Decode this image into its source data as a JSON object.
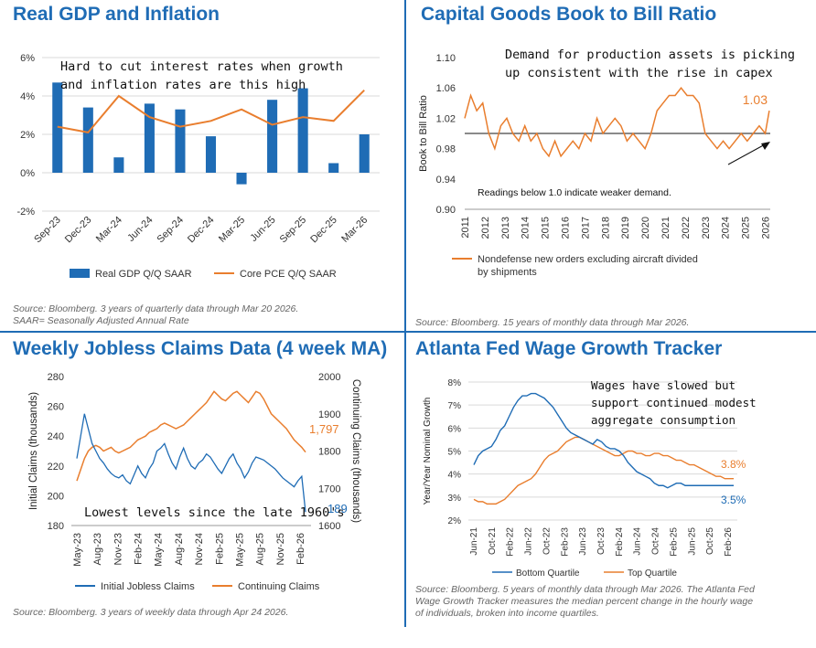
{
  "panels": [
    {
      "title": "Real GDP and Inflation",
      "source": [
        "Source: Bloomberg. 3 years of quarterly data through Mar 20 2026.",
        "SAAR= Seasonally Adjusted Annual Rate"
      ],
      "annotation": [
        "Hard to cut interest rates when growth",
        "and inflation rates are this high"
      ]
    },
    {
      "title": "Capital Goods Book to Bill Ratio",
      "source": [
        "Source: Bloomberg. 15 years of monthly data through Mar 2026."
      ],
      "annotation": [
        "Demand for production assets is picking",
        "up consistent with the rise in capex"
      ],
      "note": "Readings below 1.0 indicate weaker demand.",
      "end_label": "1.03"
    },
    {
      "title": "Weekly Jobless Claims Data (4 week MA)",
      "source": [
        "Source: Bloomberg. 3 years of weekly data through Apr 24 2026."
      ],
      "annotation": [
        "Lowest levels since the late 1960's"
      ],
      "end_label_left": "189",
      "end_label_right": "1,797"
    },
    {
      "title": "Atlanta Fed Wage Growth Tracker",
      "source": [
        "Source: Bloomberg. 5 years of monthly data through Mar 2026. The Atlanta Fed",
        "Wage Growth Tracker measures the median percent change in the hourly wage",
        "of individuals, broken into income quartiles."
      ],
      "annotation": [
        "Wages have slowed but",
        "support continued modest",
        "aggregate consumption"
      ],
      "end_label_top": "3.8%",
      "end_label_bottom": "3.5%"
    }
  ],
  "colors": {
    "blue": "#1f6cb5",
    "orange": "#e97e2e",
    "title": "#1f6cb5",
    "grid": "#d9d9d9"
  },
  "chart_data": [
    {
      "type": "bar",
      "title": "Real GDP and Inflation",
      "categories": [
        "Sep-23",
        "Dec-23",
        "Mar-24",
        "Jun-24",
        "Sep-24",
        "Dec-24",
        "Mar-25",
        "Jun-25",
        "Sep-25",
        "Dec-25",
        "Mar-26"
      ],
      "series": [
        {
          "name": "Real GDP Q/Q SAAR",
          "type": "bar",
          "values": [
            4.7,
            3.4,
            0.8,
            3.6,
            3.3,
            1.9,
            -0.6,
            3.8,
            4.4,
            0.5,
            2.0
          ]
        },
        {
          "name": "Core PCE Q/Q SAAR",
          "type": "line",
          "values": [
            2.4,
            2.1,
            4.0,
            2.9,
            2.4,
            2.7,
            3.3,
            2.5,
            2.9,
            2.7,
            4.3
          ]
        }
      ],
      "yticks": [
        "-2%",
        "0%",
        "2%",
        "4%",
        "6%"
      ],
      "ylim": [
        -2,
        6
      ],
      "grid": true,
      "legend": "bottom"
    },
    {
      "type": "line",
      "title": "Capital Goods Book to Bill Ratio",
      "ylabel": "Book to Bill Ratio",
      "x_range": [
        2011,
        2026.25
      ],
      "xticks": [
        "2011",
        "2012",
        "2013",
        "2014",
        "2015",
        "2016",
        "2017",
        "2018",
        "2019",
        "2020",
        "2021",
        "2022",
        "2023",
        "2024",
        "2025",
        "2026"
      ],
      "yticks": [
        "0.90",
        "0.94",
        "0.98",
        "1.02",
        "1.06",
        "1.10"
      ],
      "ylim": [
        0.9,
        1.1
      ],
      "reference_line": 1.0,
      "series": [
        {
          "name": "Nondefense new orders excluding aircraft divided by shipments",
          "x": [
            2011,
            2011.3,
            2011.6,
            2011.9,
            2012.2,
            2012.5,
            2012.8,
            2013.1,
            2013.4,
            2013.7,
            2014,
            2014.3,
            2014.6,
            2014.9,
            2015.2,
            2015.5,
            2015.8,
            2016.1,
            2016.4,
            2016.7,
            2017,
            2017.3,
            2017.6,
            2017.9,
            2018.2,
            2018.5,
            2018.8,
            2019.1,
            2019.4,
            2019.7,
            2020,
            2020.3,
            2020.6,
            2020.9,
            2021.2,
            2021.5,
            2021.8,
            2022.1,
            2022.4,
            2022.7,
            2023,
            2023.3,
            2023.6,
            2023.9,
            2024.2,
            2024.5,
            2024.8,
            2025.1,
            2025.4,
            2025.7,
            2026,
            2026.2
          ],
          "values": [
            1.02,
            1.05,
            1.03,
            1.04,
            1.0,
            0.98,
            1.01,
            1.02,
            1.0,
            0.99,
            1.01,
            0.99,
            1.0,
            0.98,
            0.97,
            0.99,
            0.97,
            0.98,
            0.99,
            0.98,
            1.0,
            0.99,
            1.02,
            1.0,
            1.01,
            1.02,
            1.01,
            0.99,
            1.0,
            0.99,
            0.98,
            1.0,
            1.03,
            1.04,
            1.05,
            1.05,
            1.06,
            1.05,
            1.05,
            1.04,
            1.0,
            0.99,
            0.98,
            0.99,
            0.98,
            0.99,
            1.0,
            0.99,
            1.0,
            1.01,
            1.0,
            1.03
          ]
        }
      ],
      "legend": "bottom"
    },
    {
      "type": "line",
      "title": "Weekly Jobless Claims Data (4 week MA)",
      "ylabel": "Initial Claims (thousands)",
      "ylabel_right": "Continuing Claims (thousands)",
      "xticks": [
        "May-23",
        "Aug-23",
        "Nov-23",
        "Feb-24",
        "May-24",
        "Aug-24",
        "Nov-24",
        "Feb-25",
        "May-25",
        "Aug-25",
        "Nov-25",
        "Feb-26"
      ],
      "yticks_left": [
        "180",
        "200",
        "220",
        "240",
        "260",
        "280"
      ],
      "yticks_right": [
        "1600",
        "1700",
        "1800",
        "1900",
        "2000"
      ],
      "ylim_left": [
        180,
        280
      ],
      "ylim_right": [
        1600,
        2000
      ],
      "series": [
        {
          "name": "Initial Jobless Claims",
          "axis": "left",
          "values": [
            225,
            240,
            255,
            245,
            235,
            230,
            225,
            222,
            218,
            215,
            213,
            212,
            214,
            210,
            208,
            214,
            220,
            215,
            212,
            218,
            222,
            230,
            232,
            235,
            228,
            222,
            218,
            226,
            232,
            225,
            220,
            218,
            222,
            224,
            228,
            226,
            222,
            218,
            215,
            220,
            225,
            228,
            222,
            218,
            212,
            216,
            222,
            226,
            225,
            224,
            222,
            220,
            218,
            215,
            212,
            210,
            208,
            206,
            210,
            213,
            189
          ]
        },
        {
          "name": "Continuing Claims",
          "axis": "right",
          "values": [
            1720,
            1750,
            1780,
            1800,
            1810,
            1815,
            1810,
            1800,
            1805,
            1810,
            1800,
            1795,
            1800,
            1805,
            1810,
            1820,
            1830,
            1835,
            1840,
            1850,
            1855,
            1860,
            1870,
            1875,
            1870,
            1865,
            1860,
            1865,
            1870,
            1880,
            1890,
            1900,
            1910,
            1920,
            1930,
            1945,
            1960,
            1950,
            1940,
            1935,
            1945,
            1955,
            1960,
            1950,
            1940,
            1930,
            1945,
            1960,
            1955,
            1940,
            1920,
            1900,
            1890,
            1880,
            1870,
            1860,
            1845,
            1830,
            1820,
            1810,
            1797
          ]
        }
      ],
      "legend": "bottom"
    },
    {
      "type": "line",
      "title": "Atlanta Fed Wage Growth Tracker",
      "ylabel": "Year/Year Nominal Growth",
      "xticks": [
        "Jun-21",
        "Oct-21",
        "Feb-22",
        "Jun-22",
        "Oct-22",
        "Feb-23",
        "Jun-23",
        "Oct-23",
        "Feb-24",
        "Jun-24",
        "Oct-24",
        "Feb-25",
        "Jun-25",
        "Oct-25",
        "Feb-26"
      ],
      "yticks": [
        "2%",
        "3%",
        "4%",
        "5%",
        "6%",
        "7%",
        "8%"
      ],
      "ylim": [
        2,
        8
      ],
      "series": [
        {
          "name": "Bottom Quartile",
          "values": [
            4.4,
            4.8,
            5.0,
            5.1,
            5.2,
            5.5,
            5.9,
            6.1,
            6.5,
            6.9,
            7.2,
            7.4,
            7.4,
            7.5,
            7.5,
            7.4,
            7.3,
            7.1,
            6.9,
            6.6,
            6.3,
            6.0,
            5.8,
            5.7,
            5.6,
            5.5,
            5.4,
            5.3,
            5.5,
            5.4,
            5.2,
            5.1,
            5.1,
            5.0,
            4.8,
            4.5,
            4.3,
            4.1,
            4.0,
            3.9,
            3.8,
            3.6,
            3.5,
            3.5,
            3.4,
            3.5,
            3.6,
            3.6,
            3.5,
            3.5,
            3.5,
            3.5,
            3.5,
            3.5,
            3.5,
            3.5,
            3.5,
            3.5,
            3.5,
            3.5
          ]
        },
        {
          "name": "Top Quartile",
          "values": [
            2.9,
            2.8,
            2.8,
            2.7,
            2.7,
            2.7,
            2.8,
            2.9,
            3.1,
            3.3,
            3.5,
            3.6,
            3.7,
            3.8,
            4.0,
            4.3,
            4.6,
            4.8,
            4.9,
            5.0,
            5.2,
            5.4,
            5.5,
            5.6,
            5.6,
            5.5,
            5.4,
            5.3,
            5.2,
            5.1,
            5.0,
            4.9,
            4.8,
            4.8,
            4.9,
            5.0,
            5.0,
            4.9,
            4.9,
            4.8,
            4.8,
            4.9,
            4.9,
            4.8,
            4.8,
            4.7,
            4.6,
            4.6,
            4.5,
            4.4,
            4.4,
            4.3,
            4.2,
            4.1,
            4.0,
            3.9,
            3.9,
            3.8,
            3.8,
            3.8
          ]
        }
      ],
      "legend": "bottom"
    }
  ]
}
